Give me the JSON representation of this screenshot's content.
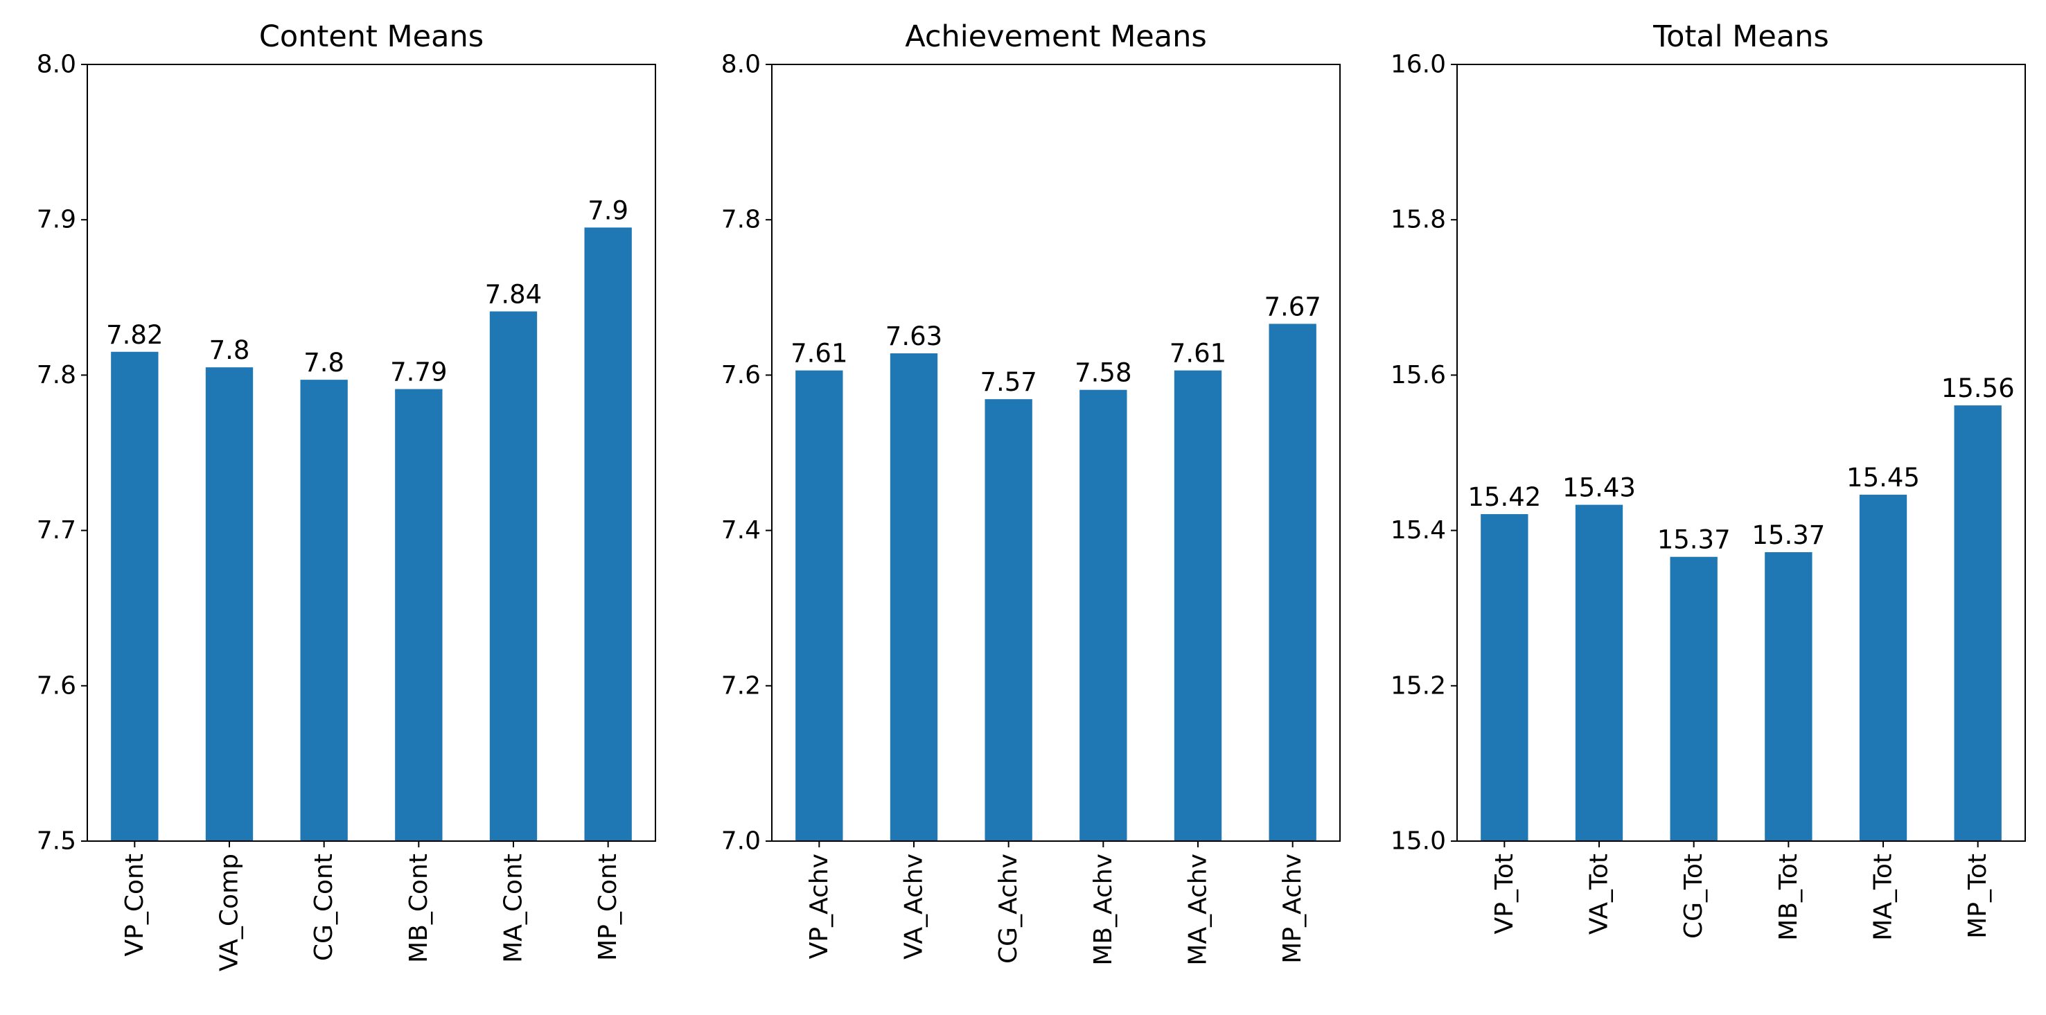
{
  "colors": {
    "bar": "#1f77b4",
    "axis": "#000000",
    "background": "#ffffff"
  },
  "chart_data": [
    {
      "type": "bar",
      "title": "Content Means",
      "categories": [
        "VP_Cont",
        "VA_Comp",
        "CG_Cont",
        "MB_Cont",
        "MA_Cont",
        "MP_Cont"
      ],
      "values": [
        7.815,
        7.805,
        7.797,
        7.791,
        7.841,
        7.895
      ],
      "data_labels": [
        "7.82",
        "7.8",
        "7.8",
        "7.79",
        "7.84",
        "7.9"
      ],
      "ylim": [
        7.5,
        8.0
      ],
      "yticks": [
        7.5,
        7.6,
        7.7,
        7.8,
        7.9,
        8.0
      ],
      "ytick_labels": [
        "7.5",
        "7.6",
        "7.7",
        "7.8",
        "7.9",
        "8.0"
      ],
      "xlabel": "",
      "ylabel": "",
      "grid": false
    },
    {
      "type": "bar",
      "title": "Achievement Means",
      "categories": [
        "VP_Achv",
        "VA_Achv",
        "CG_Achv",
        "MB_Achv",
        "MA_Achv",
        "MP_Achv"
      ],
      "values": [
        7.606,
        7.628,
        7.569,
        7.581,
        7.606,
        7.666
      ],
      "data_labels": [
        "7.61",
        "7.63",
        "7.57",
        "7.58",
        "7.61",
        "7.67"
      ],
      "ylim": [
        7.0,
        8.0
      ],
      "yticks": [
        7.0,
        7.2,
        7.4,
        7.6,
        7.8,
        8.0
      ],
      "ytick_labels": [
        "7.0",
        "7.2",
        "7.4",
        "7.6",
        "7.8",
        "8.0"
      ],
      "xlabel": "",
      "ylabel": "",
      "grid": false
    },
    {
      "type": "bar",
      "title": "Total Means",
      "categories": [
        "VP_Tot",
        "VA_Tot",
        "CG_Tot",
        "MB_Tot",
        "MA_Tot",
        "MP_Tot"
      ],
      "values": [
        15.421,
        15.433,
        15.366,
        15.372,
        15.446,
        15.561
      ],
      "data_labels": [
        "15.42",
        "15.43",
        "15.37",
        "15.37",
        "15.45",
        "15.56"
      ],
      "ylim": [
        15.0,
        16.0
      ],
      "yticks": [
        15.0,
        15.2,
        15.4,
        15.6,
        15.8,
        16.0
      ],
      "ytick_labels": [
        "15.0",
        "15.2",
        "15.4",
        "15.6",
        "15.8",
        "16.0"
      ],
      "xlabel": "",
      "ylabel": "",
      "grid": false
    }
  ]
}
